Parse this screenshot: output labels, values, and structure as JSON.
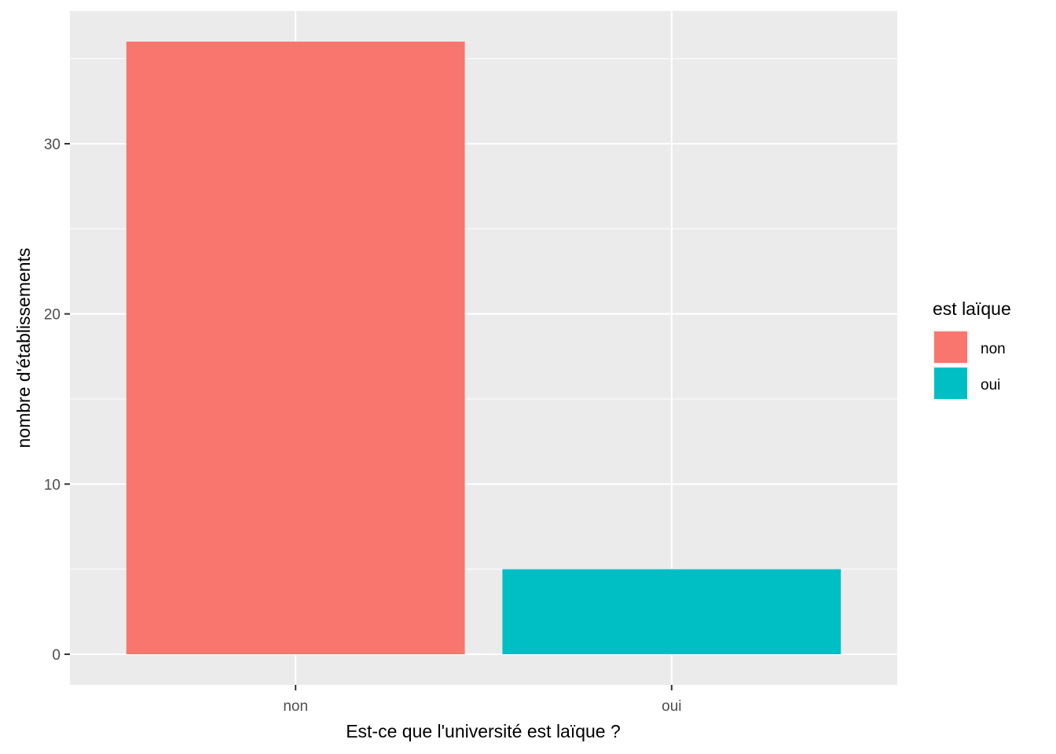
{
  "chart_data": {
    "type": "bar",
    "categories": [
      "non",
      "oui"
    ],
    "values": [
      36,
      5
    ],
    "colors": [
      "#F8766D",
      "#00BFC4"
    ],
    "xlabel": "Est-ce que l'université est laïque ?",
    "ylabel": "nombre d'établissements",
    "ylim": [
      -1.8,
      37.8
    ],
    "yticks": [
      0,
      10,
      20,
      30
    ],
    "ytick_labels": [
      "0",
      "10",
      "20",
      "30"
    ],
    "grid": true,
    "panel_background": "#EBEBEB",
    "grid_color": "#FFFFFF",
    "legend": {
      "title": "est laïque",
      "position": "right",
      "entries": [
        {
          "label": "non",
          "color": "#F8766D"
        },
        {
          "label": "oui",
          "color": "#00BFC4"
        }
      ]
    }
  }
}
